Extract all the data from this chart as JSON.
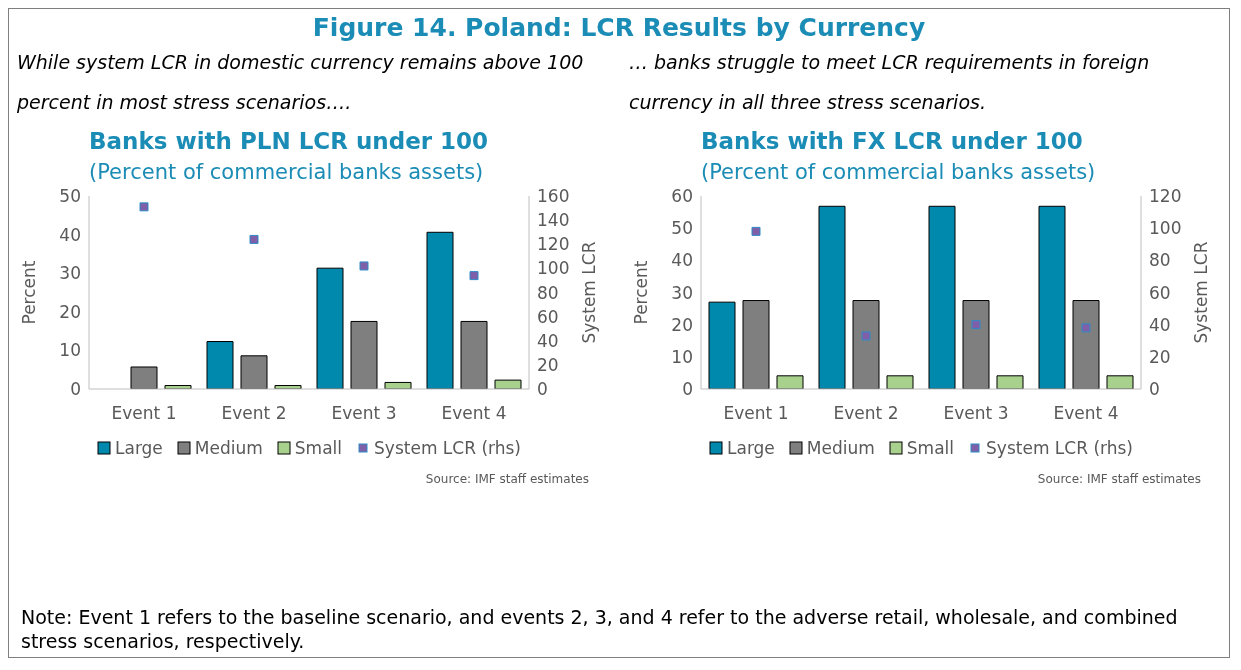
{
  "chart_data": [
    {
      "type": "other",
      "title": "Figure 14. Poland: LCR Results by Currency",
      "annotations": [
        "Note: Event 1 refers to the baseline scenario, and events 2, 3, and 4 refer to the adverse retail, wholesale, and combined stress scenarios, respectively."
      ]
    },
    {
      "type": "bar",
      "title": "Banks with PLN LCR under 100",
      "subtitle": "(Percent of commercial banks assets)",
      "ylabel": "Percent",
      "y2label": "System LCR",
      "annotations": [
        "While system LCR in domestic currency remains above 100 percent in most stress scenarios….",
        "Source: IMF staff estimates"
      ],
      "categories": [
        "Event 1",
        "Event 2",
        "Event 3",
        "Event 4"
      ],
      "series": [
        {
          "name": "Large",
          "color": "#0089ad",
          "values": [
            0,
            12.3,
            31.3,
            40.6
          ]
        },
        {
          "name": "Medium",
          "color": "#7f7f7f",
          "values": [
            5.7,
            8.6,
            17.5,
            17.5
          ]
        },
        {
          "name": "Small",
          "color": "#a9d18e",
          "values": [
            0.9,
            0.9,
            1.7,
            2.3
          ]
        },
        {
          "name": "System LCR (rhs)",
          "type": "scatter",
          "axis": "y2",
          "color": "#7f5fa8",
          "values": [
            151,
            124,
            102,
            94
          ]
        }
      ],
      "ylim": [
        0,
        50
      ],
      "yticks": [
        0,
        10,
        20,
        30,
        40,
        50
      ],
      "y2lim": [
        0,
        160
      ],
      "y2ticks": [
        0,
        20,
        40,
        60,
        80,
        100,
        120,
        140,
        160
      ],
      "grid": false,
      "legend": "bottom",
      "marker": "square"
    },
    {
      "type": "bar",
      "title": "Banks with FX LCR under 100",
      "subtitle": "(Percent of commercial banks assets)",
      "ylabel": "Percent",
      "y2label": "System LCR",
      "annotations": [
        "… banks struggle to meet LCR requirements in foreign currency in all three stress scenarios.",
        "Source: IMF staff estimates"
      ],
      "categories": [
        "Event 1",
        "Event 2",
        "Event 3",
        "Event 4"
      ],
      "series": [
        {
          "name": "Large",
          "color": "#0089ad",
          "values": [
            27,
            56.8,
            56.8,
            56.8
          ]
        },
        {
          "name": "Medium",
          "color": "#7f7f7f",
          "values": [
            27.5,
            27.5,
            27.5,
            27.5
          ]
        },
        {
          "name": "Small",
          "color": "#a9d18e",
          "values": [
            4.1,
            4.1,
            4.1,
            4.1
          ]
        },
        {
          "name": "System LCR (rhs)",
          "type": "scatter",
          "axis": "y2",
          "color": "#7f5fa8",
          "values": [
            98,
            33,
            40,
            38
          ]
        }
      ],
      "ylim": [
        0,
        60
      ],
      "yticks": [
        0,
        10,
        20,
        30,
        40,
        50,
        60
      ],
      "y2lim": [
        0,
        120
      ],
      "y2ticks": [
        0,
        20,
        40,
        60,
        80,
        100,
        120
      ],
      "grid": false,
      "legend": "bottom",
      "marker": "square"
    }
  ]
}
